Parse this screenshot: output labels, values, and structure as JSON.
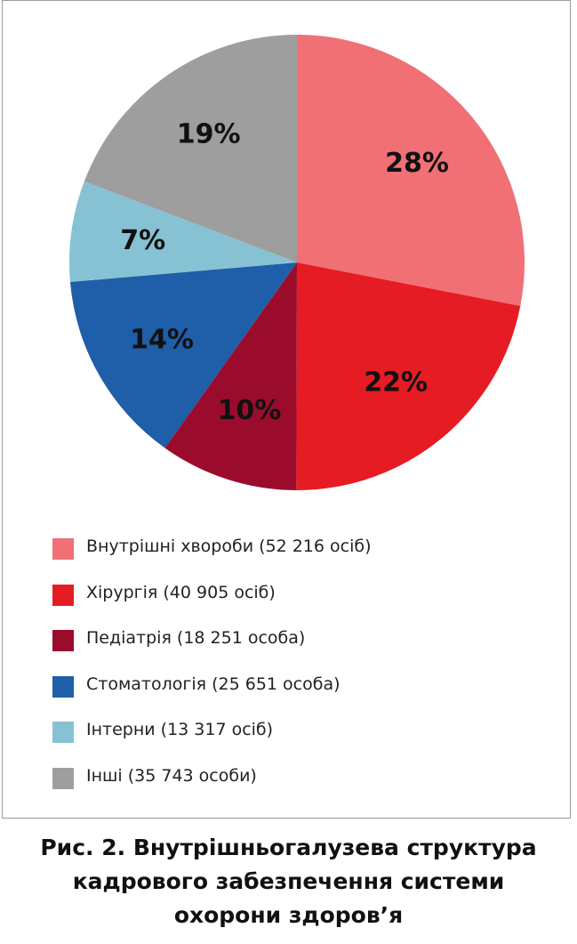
{
  "chart_data": {
    "type": "pie",
    "title": "",
    "categories": [
      "Внутрішні хвороби (52 216 осіб)",
      "Хірургія (40 905 осіб)",
      "Педіатрія (18 251 особа)",
      "Стоматологія (25 651 особа)",
      "Інтерни (13 317 осіб)",
      "Інші (35 743 особи)"
    ],
    "values": [
      52216,
      40905,
      18251,
      25651,
      13317,
      35743
    ],
    "data_labels": [
      "28%",
      "22%",
      "10%",
      "14%",
      "7%",
      "19%"
    ],
    "colors": [
      "#f07075",
      "#e51c23",
      "#9b0c2c",
      "#1f5ea8",
      "#86c2d3",
      "#9e9e9e"
    ],
    "legend_placement": "bottom"
  },
  "caption": {
    "line1": "Рис. 2. Внутрішньогалузева структура",
    "line2": "кадрового забезпечення системи",
    "line3": "охорони здоров’я"
  }
}
